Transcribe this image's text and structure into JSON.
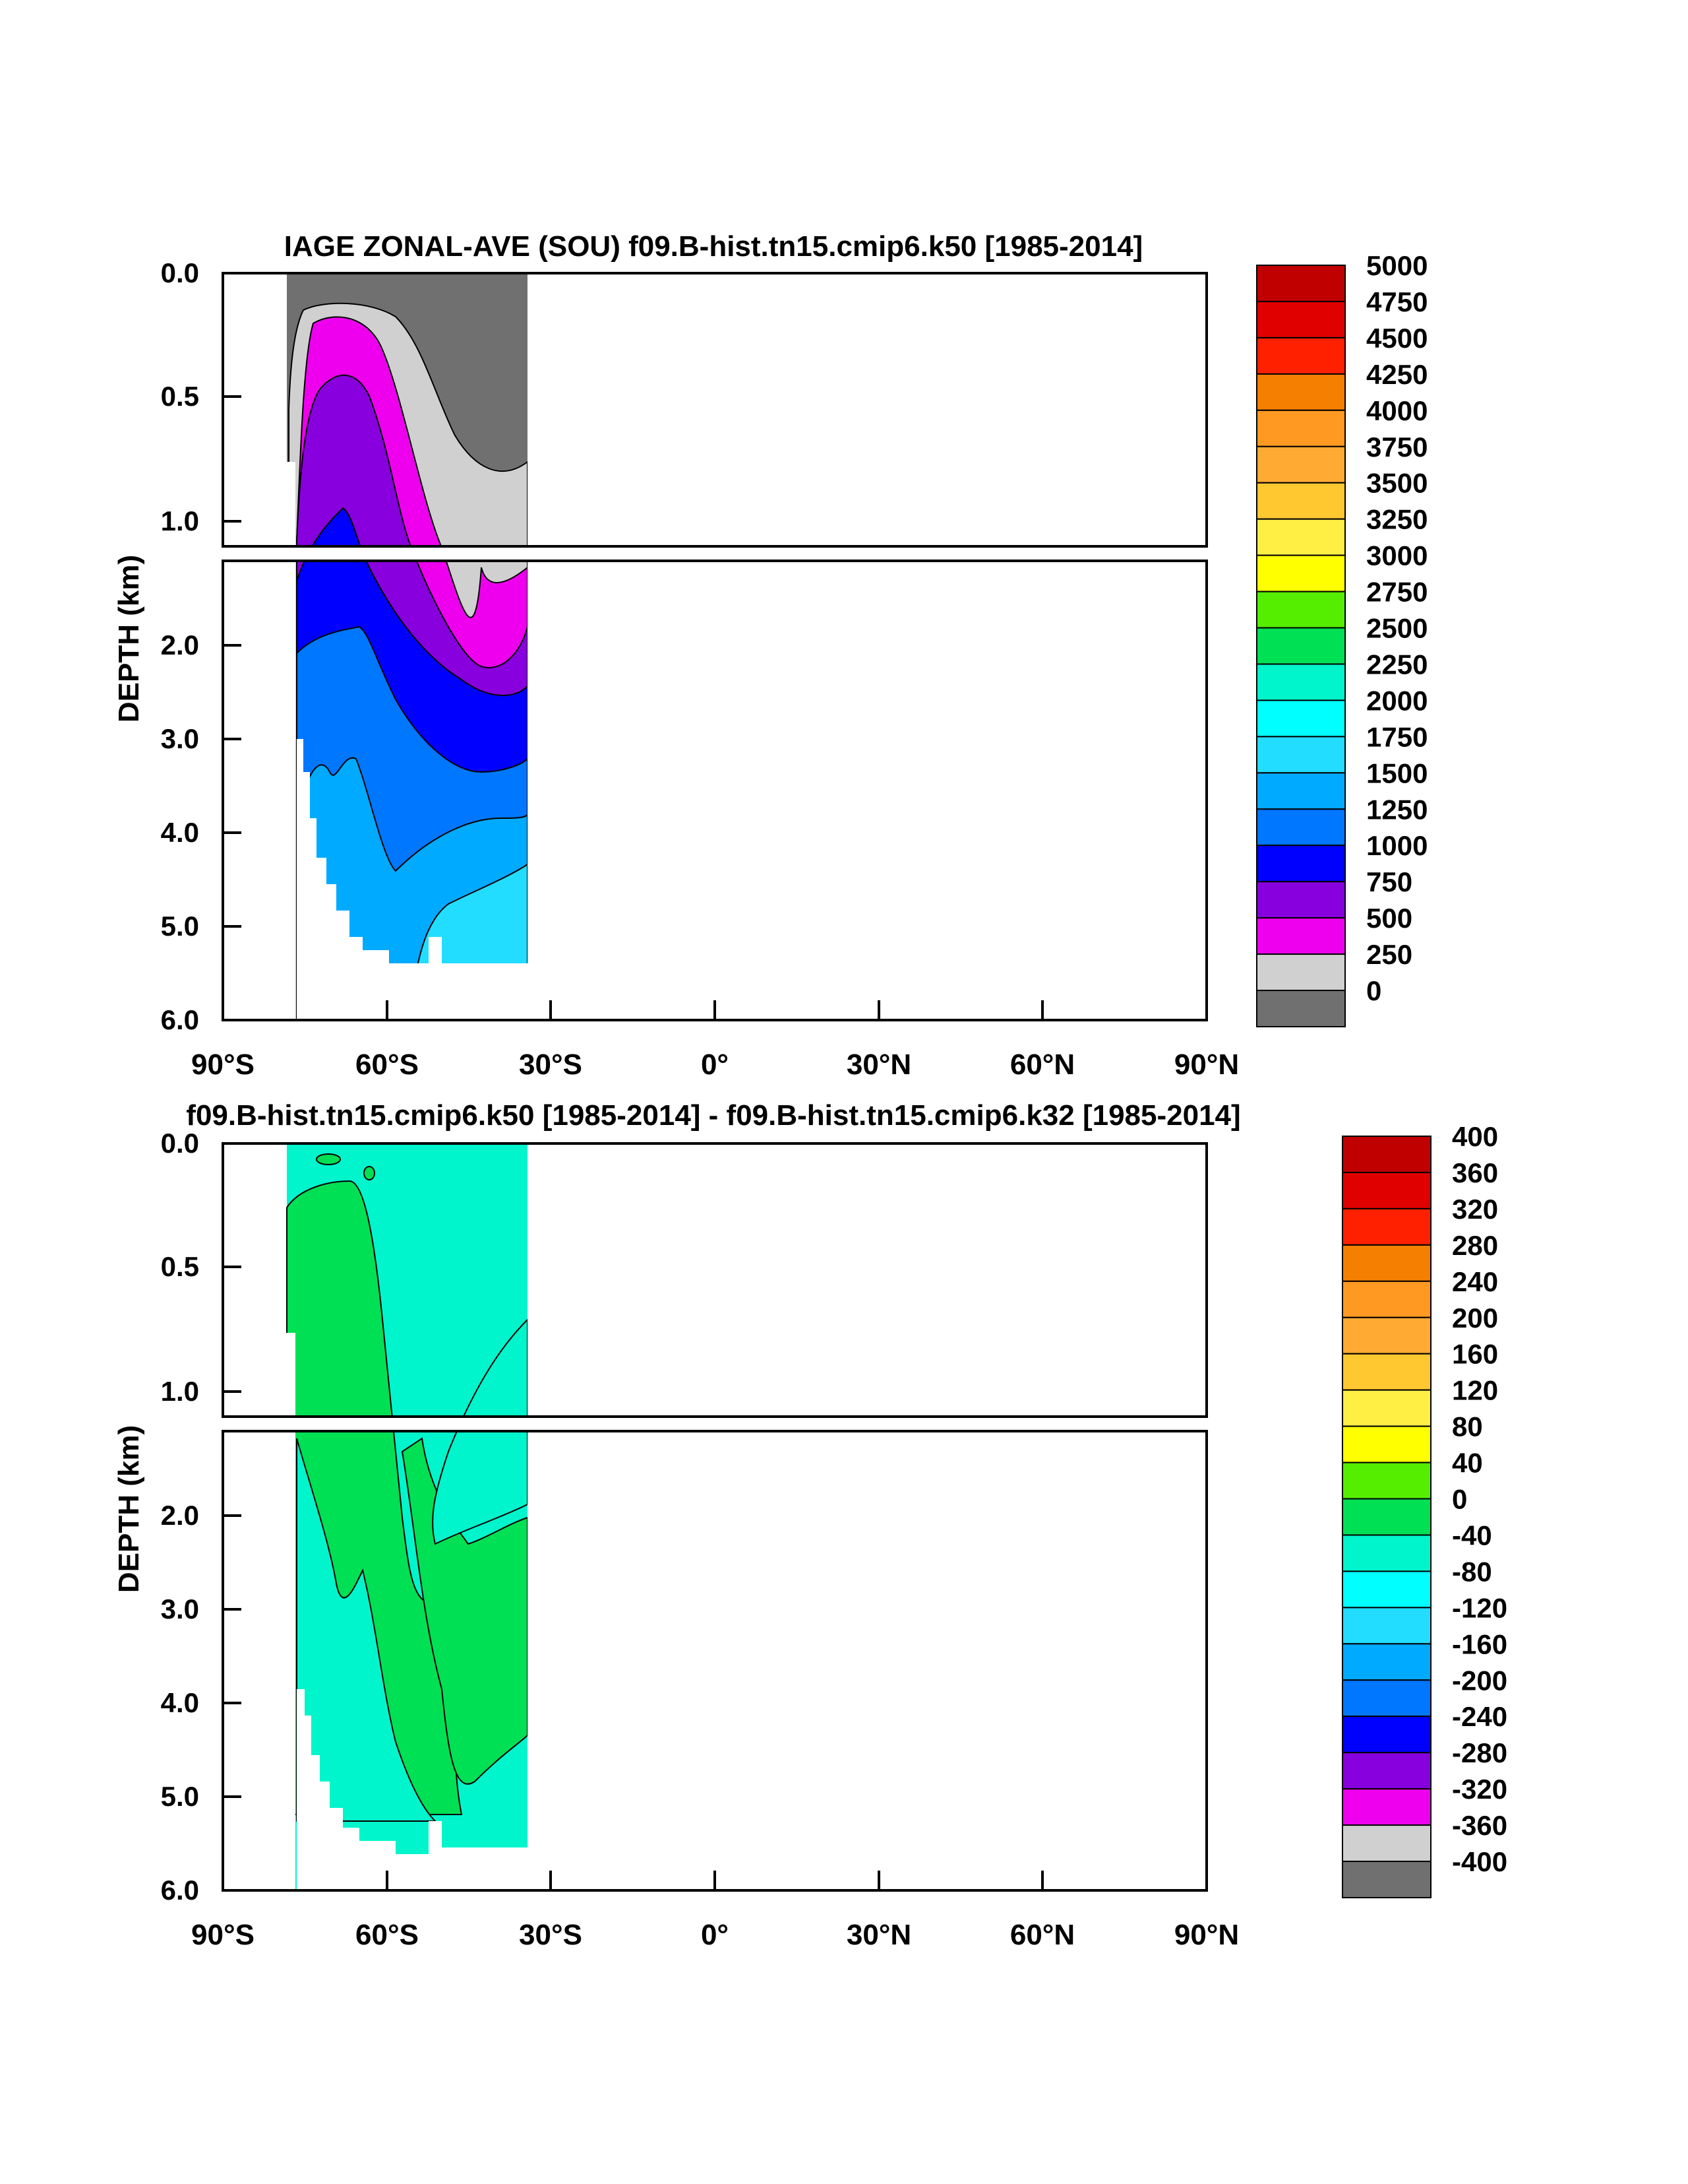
{
  "chart_data": [
    {
      "type": "contour",
      "title": "IAGE ZONAL-AVE (SOU) f09.B-hist.tn15.cmip6.k50 [1985-2014]",
      "xlabel": "",
      "ylabel": "DEPTH (km)",
      "x_ticks": [
        "90°S",
        "60°S",
        "30°S",
        "0°",
        "30°N",
        "60°N",
        "90°N"
      ],
      "y_ticks_upper": [
        "0.0",
        "0.5",
        "1.0"
      ],
      "y_ticks_lower": [
        "2.0",
        "3.0",
        "4.0",
        "5.0",
        "6.0"
      ],
      "xlim": [
        -90,
        90
      ],
      "ylim_km": [
        0,
        6
      ],
      "depth_break_km": 1.1,
      "data_extent_lat": [
        -78,
        -33
      ],
      "data_extent_depth_km": [
        0,
        5.4
      ],
      "colorbar": {
        "labels": [
          "5000",
          "4750",
          "4500",
          "4250",
          "4000",
          "3750",
          "3500",
          "3250",
          "3000",
          "2750",
          "2500",
          "2250",
          "2000",
          "1750",
          "1500",
          "1250",
          "1000",
          "750",
          "500",
          "250",
          "0"
        ],
        "colors": [
          "#c00000",
          "#e00000",
          "#ff2000",
          "#f57f00",
          "#ff9922",
          "#ffaa33",
          "#ffc830",
          "#ffee44",
          "#ffff00",
          "#55ee00",
          "#00e055",
          "#00f5cc",
          "#00ffff",
          "#22ddff",
          "#00aaff",
          "#0077ff",
          "#0000ff",
          "#8800dd",
          "#ee00ee",
          "#d0d0d0",
          "#707070"
        ]
      }
    },
    {
      "type": "contour",
      "title": "f09.B-hist.tn15.cmip6.k50 [1985-2014] - f09.B-hist.tn15.cmip6.k32 [1985-2014]",
      "xlabel": "",
      "ylabel": "DEPTH (km)",
      "x_ticks": [
        "90°S",
        "60°S",
        "30°S",
        "0°",
        "30°N",
        "60°N",
        "90°N"
      ],
      "y_ticks_upper": [
        "0.0",
        "0.5",
        "1.0"
      ],
      "y_ticks_lower": [
        "2.0",
        "3.0",
        "4.0",
        "5.0",
        "6.0"
      ],
      "xlim": [
        -90,
        90
      ],
      "ylim_km": [
        0,
        6
      ],
      "depth_break_km": 1.1,
      "data_extent_lat": [
        -78,
        -33
      ],
      "data_extent_depth_km": [
        0,
        5.4
      ],
      "colorbar": {
        "labels": [
          "400",
          "360",
          "320",
          "280",
          "240",
          "200",
          "160",
          "120",
          "80",
          "40",
          "0",
          "-40",
          "-80",
          "-120",
          "-160",
          "-200",
          "-240",
          "-280",
          "-320",
          "-360",
          "-400"
        ],
        "colors": [
          "#c00000",
          "#e00000",
          "#ff2000",
          "#f57f00",
          "#ff9922",
          "#ffaa33",
          "#ffc830",
          "#ffee44",
          "#ffff00",
          "#55ee00",
          "#00e055",
          "#00f5cc",
          "#00ffff",
          "#22ddff",
          "#00aaff",
          "#0077ff",
          "#0000ff",
          "#8800dd",
          "#ee00ee",
          "#d0d0d0",
          "#707070"
        ]
      }
    }
  ]
}
